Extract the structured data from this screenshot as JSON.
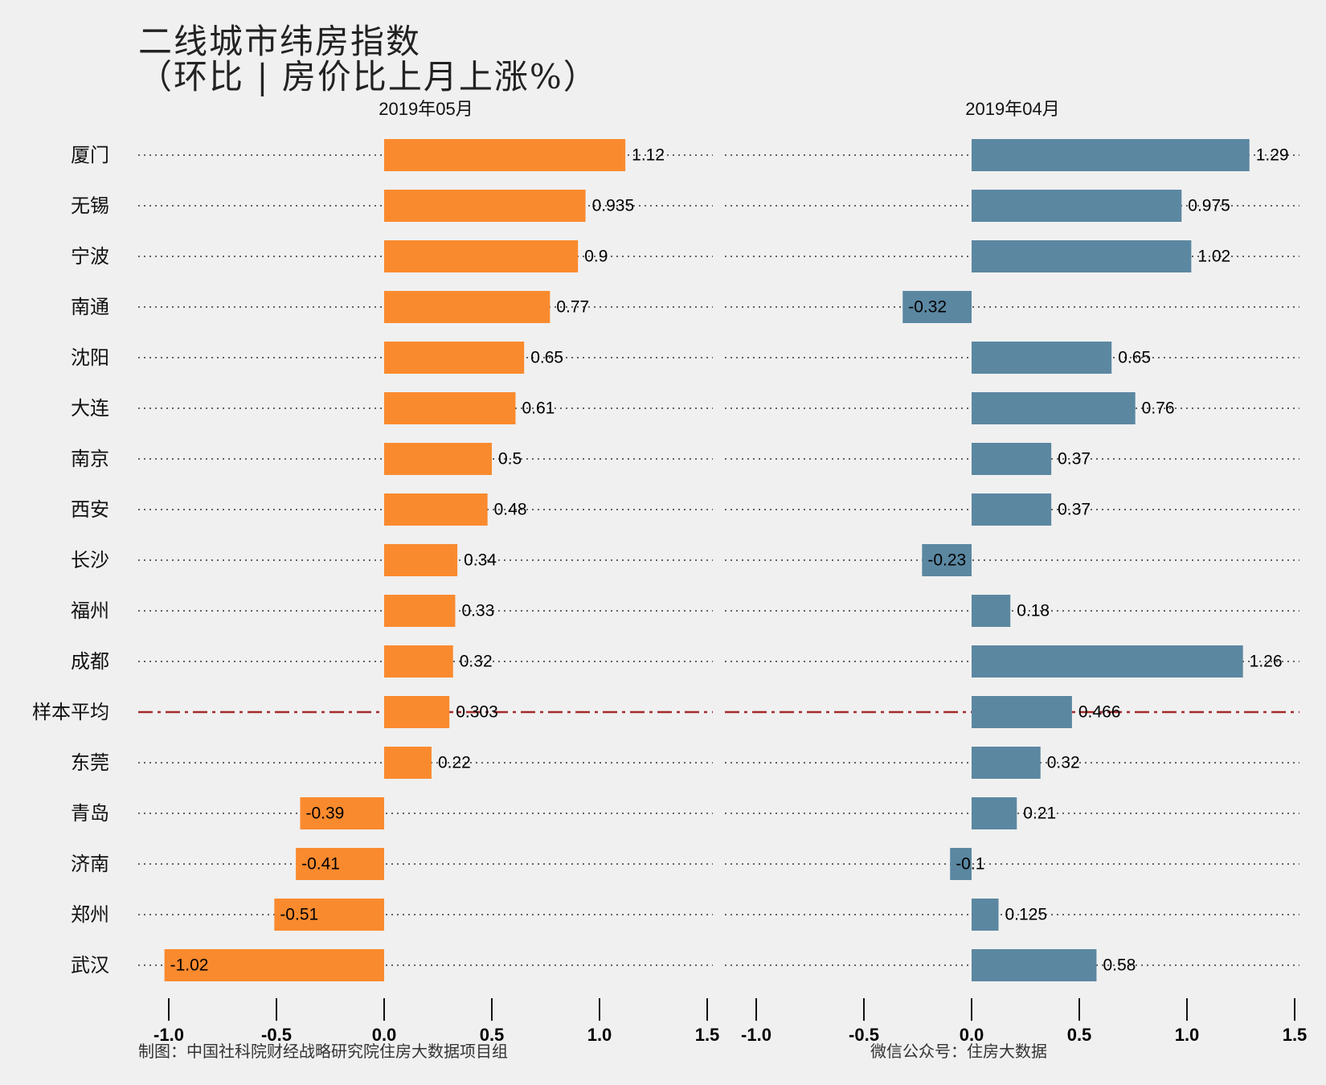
{
  "title": {
    "line1": "二线城市纬房指数",
    "line2": "（环比 | 房价比上月上涨%）"
  },
  "footer": {
    "left": "制图：中国社科院财经战略研究院住房大数据项目组",
    "right": "微信公众号：住房大数据"
  },
  "colors": {
    "background": "#f0f0f0",
    "panel_left_bar": "#fa8a2e",
    "panel_right_bar": "#5b87a1",
    "average_line": "#a52a2a",
    "dotted_line": "#333333"
  },
  "chart_data": [
    {
      "type": "bar",
      "orientation": "horizontal",
      "panel_title": "2019年05月",
      "categories": [
        "厦门",
        "无锡",
        "宁波",
        "南通",
        "沈阳",
        "大连",
        "南京",
        "西安",
        "长沙",
        "福州",
        "成都",
        "样本平均",
        "东莞",
        "青岛",
        "济南",
        "郑州",
        "武汉"
      ],
      "values": [
        1.12,
        0.935,
        0.9,
        0.77,
        0.65,
        0.61,
        0.5,
        0.48,
        0.34,
        0.33,
        0.32,
        0.303,
        0.22,
        -0.39,
        -0.41,
        -0.51,
        -1.02
      ],
      "value_labels": [
        "1.12",
        "0.935",
        "0.9",
        "0.77",
        "0.65",
        "0.61",
        "0.5",
        "0.48",
        "0.34",
        "0.33",
        "0.32",
        "0.303",
        "0.22",
        "-0.39",
        "-0.41",
        "-0.51",
        "-1.02"
      ],
      "highlight_category": "样本平均",
      "xlim": [
        -1.0,
        1.5
      ],
      "xticks": [
        -1.0,
        -0.5,
        0.0,
        0.5,
        1.0,
        1.5
      ],
      "xtick_labels": [
        "-1.0",
        "-0.5",
        "0.0",
        "0.5",
        "1.0",
        "1.5"
      ],
      "grid": false
    },
    {
      "type": "bar",
      "orientation": "horizontal",
      "panel_title": "2019年04月",
      "categories": [
        "厦门",
        "无锡",
        "宁波",
        "南通",
        "沈阳",
        "大连",
        "南京",
        "西安",
        "长沙",
        "福州",
        "成都",
        "样本平均",
        "东莞",
        "青岛",
        "济南",
        "郑州",
        "武汉"
      ],
      "values": [
        1.29,
        0.975,
        1.02,
        -0.32,
        0.65,
        0.76,
        0.37,
        0.37,
        -0.23,
        0.18,
        1.26,
        0.466,
        0.32,
        0.21,
        -0.1,
        0.125,
        0.58
      ],
      "value_labels": [
        "1.29",
        "0.975",
        "1.02",
        "-0.32",
        "0.65",
        "0.76",
        "0.37",
        "0.37",
        "-0.23",
        "0.18",
        "1.26",
        "0.466",
        "0.32",
        "0.21",
        "-0.1",
        "0.125",
        "0.58"
      ],
      "highlight_category": "样本平均",
      "xlim": [
        -1.0,
        1.5
      ],
      "xticks": [
        -1.0,
        -0.5,
        0.0,
        0.5,
        1.0,
        1.5
      ],
      "xtick_labels": [
        "-1.0",
        "-0.5",
        "0.0",
        "0.5",
        "1.0",
        "1.5"
      ],
      "grid": false
    }
  ]
}
